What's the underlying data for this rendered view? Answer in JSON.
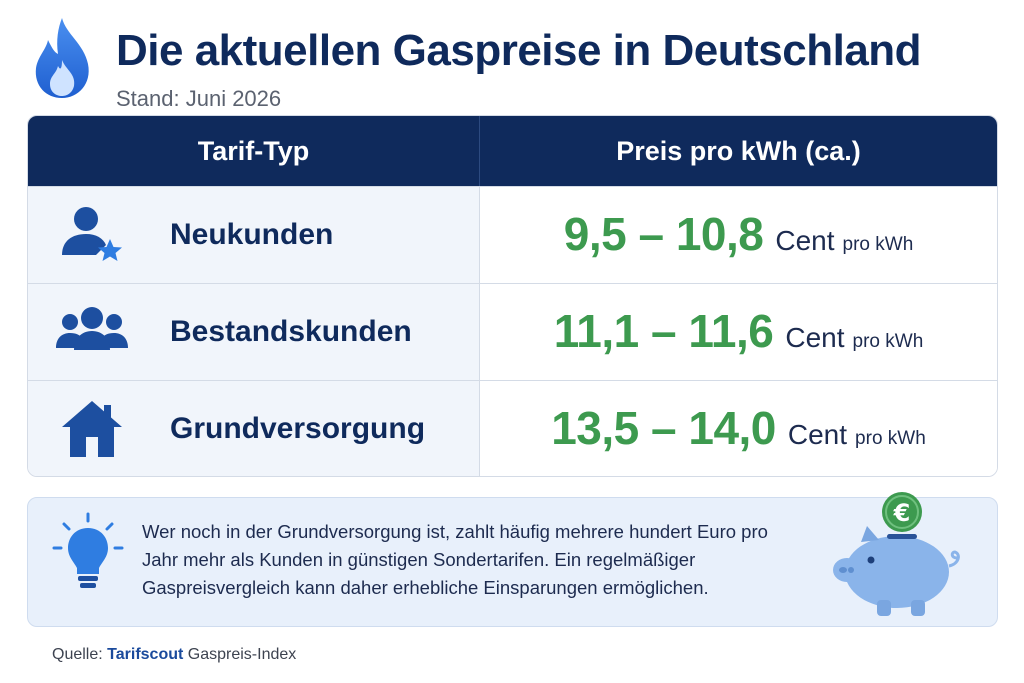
{
  "header": {
    "title": "Die aktuellen Gaspreise in Deutschland",
    "subtitle": "Stand: Juni 2026",
    "icon": "flame-icon"
  },
  "table": {
    "headers": [
      "Tarif-Typ",
      "Preis pro kWh (ca.)"
    ],
    "rows": [
      {
        "label": "Neukunden",
        "icon": "user-star-icon",
        "price": "9,5 – 10,8",
        "unit": "Cent",
        "per": "pro kWh"
      },
      {
        "label": "Bestandskunden",
        "icon": "group-icon",
        "price": "11,1 – 11,6",
        "unit": "Cent",
        "per": "pro kWh"
      },
      {
        "label": "Grundversorgung",
        "icon": "house-icon",
        "price": "13,5 – 14,0",
        "unit": "Cent",
        "per": "pro kWh"
      }
    ]
  },
  "info": {
    "icon": "lightbulb-icon",
    "text": "Wer noch in der Grundversorgung ist, zahlt häufig mehrere hundert Euro pro Jahr mehr als Kunden in günstigen Sondertarifen. Ein regelmäßiger Gaspreisvergleich kann daher erhebliche Einsparungen ermöglichen.",
    "illustration": "piggy-bank-euro-icon",
    "coin_symbol": "€"
  },
  "source": {
    "prefix": "Quelle:",
    "brand": "Tarifscout",
    "suffix": "Gaspreis-Index"
  },
  "colors": {
    "navy": "#0f2a5c",
    "green": "#3d9a4f",
    "accent_blue": "#2f7de1",
    "light_bg": "#f1f5fb",
    "info_bg": "#e8f0fb"
  },
  "chart_data": {
    "type": "table",
    "title": "Die aktuellen Gaspreise in Deutschland",
    "subtitle": "Stand: Juni 2026",
    "columns": [
      "Tarif-Typ",
      "Preis pro kWh (ca.)"
    ],
    "categories": [
      "Neukunden",
      "Bestandskunden",
      "Grundversorgung"
    ],
    "series": [
      {
        "name": "min",
        "values": [
          9.5,
          11.1,
          13.5
        ]
      },
      {
        "name": "max",
        "values": [
          10.8,
          11.6,
          14.0
        ]
      }
    ],
    "unit": "Cent pro kWh"
  }
}
